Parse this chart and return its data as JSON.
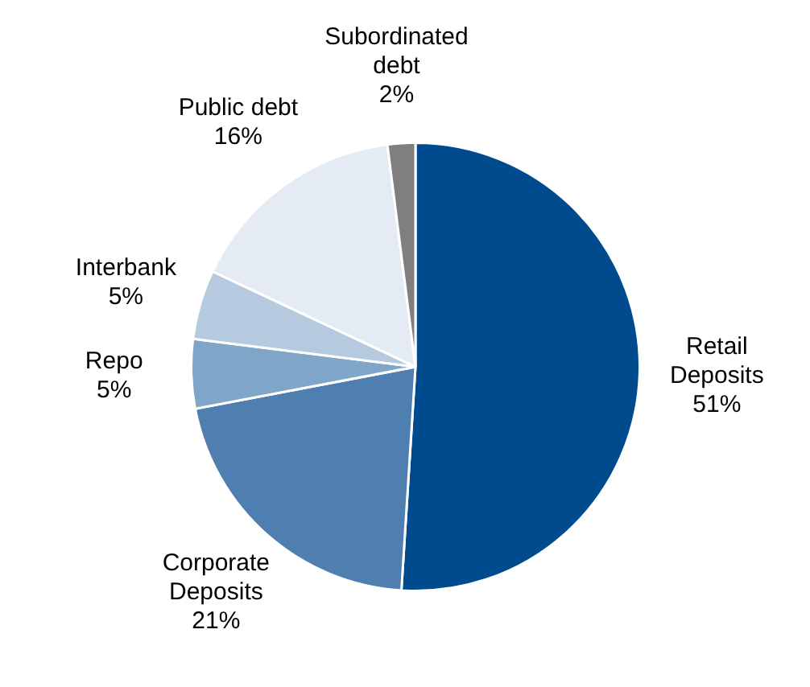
{
  "chart_data": {
    "type": "pie",
    "categories": [
      "Retail Deposits",
      "Corporate Deposits",
      "Repo",
      "Interbank",
      "Public debt",
      "Subordinated debt"
    ],
    "values": [
      51,
      21,
      5,
      5,
      16,
      2
    ],
    "value_labels": [
      "51%",
      "21%",
      "5%",
      "5%",
      "16%",
      "2%"
    ],
    "colors": [
      "#004b8d",
      "#4f7fb0",
      "#7fa5c8",
      "#b5cade",
      "#e4ebf4",
      "#7f7f7f"
    ],
    "legend": false
  }
}
